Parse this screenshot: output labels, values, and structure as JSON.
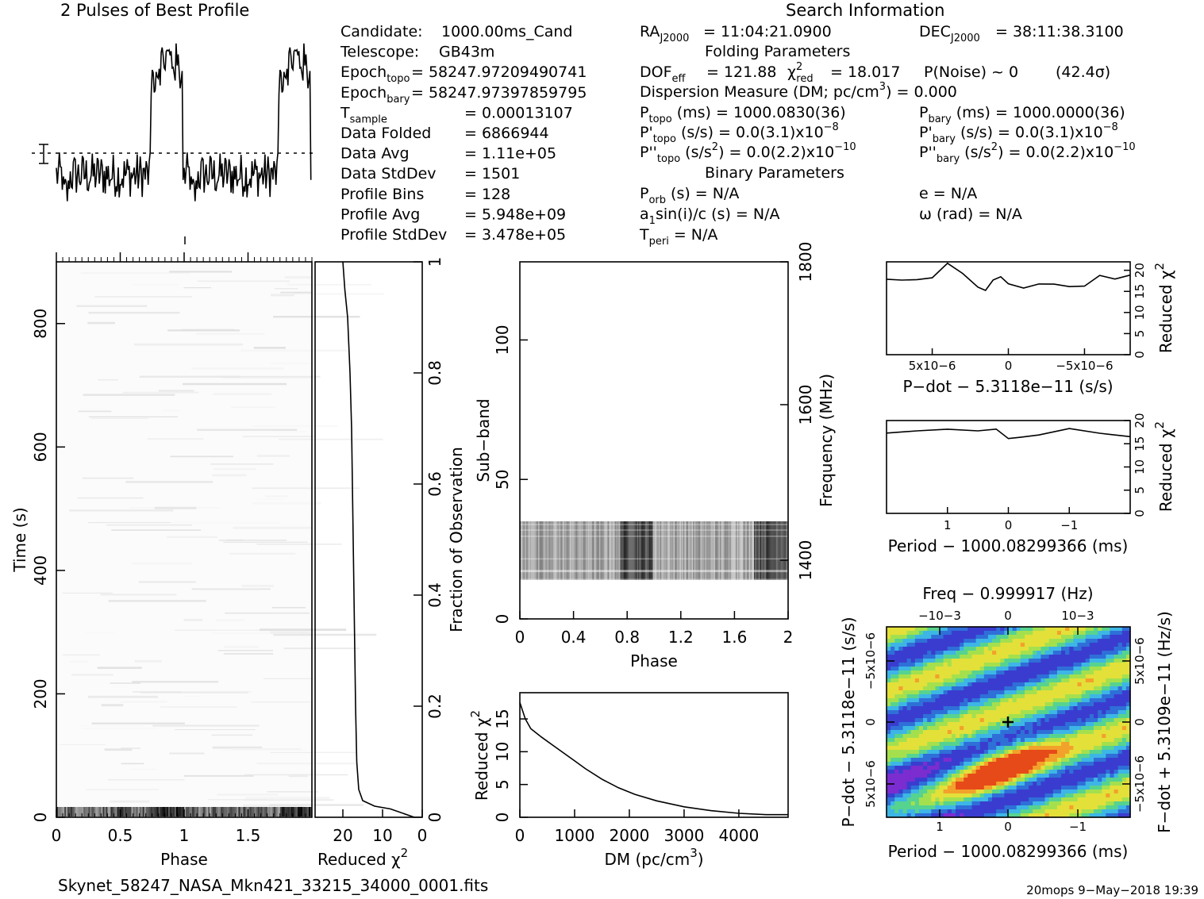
{
  "profile_title": "2 Pulses of Best Profile",
  "search_info_title": "Search Information",
  "info_col1": [
    {
      "label": "Candidate:",
      "value": "1000.00ms_Cand"
    },
    {
      "label": "Telescope:",
      "value": "GB43m"
    },
    {
      "label": "Epoch",
      "sub": "topo",
      "value": "= 58247.97209490741"
    },
    {
      "label": "Epoch",
      "sub": "bary",
      "value": "= 58247.97397859795"
    },
    {
      "label": "T",
      "sub": "sample",
      "value": "=   0.00013107"
    },
    {
      "label": "Data Folded",
      "value": "=   6866944"
    },
    {
      "label": "Data Avg",
      "value": "=   1.11e+05"
    },
    {
      "label": "Data StdDev",
      "value": "=   1501"
    },
    {
      "label": "Profile Bins",
      "value": "=   128"
    },
    {
      "label": "Profile Avg",
      "value": "=   5.948e+09"
    },
    {
      "label": "Profile StdDev",
      "value": "=   3.478e+05"
    }
  ],
  "info_col2": {
    "ra": "= 11:04:21.0900",
    "folding_title": "Folding Parameters",
    "dof": "DOF",
    "dof_sub": "eff",
    "dof_val": "= 121.88",
    "chi_val": "= 18.017",
    "chi_sub": "red",
    "pnoise": "P(Noise) ~ 0",
    "sigma": "(42.4σ)",
    "dm_line": "Dispersion Measure (DM; pc/cm",
    "dm_val": ") = 0.000",
    "ptopo": "(ms) =   1000.0830(36)",
    "pdtopo": "(s/s) = 0.0(3.1)x10",
    "pdtopo_exp": "−8",
    "pddtopo": "(s/s",
    "pddtopo_val": ") = 0.0(2.2)x10",
    "pddtopo_exp": "−10",
    "binary_title": "Binary Parameters",
    "porb": "(s) = N/A",
    "a1": "sin(i)/c (s) = N/A",
    "tperi": "= N/A"
  },
  "info_col3": {
    "dec": "= 38:11:38.3100",
    "pbary": "(ms) =   1000.0000(36)",
    "pdbary": "(s/s) = 0.0(3.1)x10",
    "pdbary_exp": "−8",
    "pddbary": "(s/s",
    "pddbary_val": ") = 0.0(2.2)x10",
    "pddbary_exp": "−10",
    "ecc": "e = N/A",
    "omega": "ω (rad) = N/A"
  },
  "labels": {
    "time_axis": "Time (s)",
    "phase": "Phase",
    "reduced_chi": "Reduced χ",
    "fraction": "Fraction of Observation",
    "subband": "Sub−band",
    "frequency": "Frequency (MHz)",
    "dm_axis": "DM (pc/cm",
    "pdot_label": "P−dot − 5.3118e−11 (s/s)",
    "period_label": "Period − 1000.08299366 (ms)",
    "freq_label": "Freq − 0.999917 (Hz)",
    "pdot_left": "P−dot − 5.3118e−11 (s/s)",
    "fdot_right": "F−dot + 5.3109e−11 (Hz/s)",
    "filename": "Skynet_58247_NASA_Mkn421_33215_34000_0001.fits",
    "footer_right": "20mops  9−May−2018 19:39"
  },
  "chart_data": [
    {
      "type": "line",
      "title": "2 Pulses of Best Profile",
      "xlabel": "Phase",
      "xlim": [
        0,
        2
      ],
      "description_values": "pulse profile, 128 bins x2",
      "profile_bins": 128
    },
    {
      "type": "heatmap",
      "xlabel": "Phase",
      "ylabel": "Time (s)",
      "xlim": [
        0,
        2
      ],
      "ylim": [
        0,
        900
      ],
      "xticks": [
        "0",
        "0.5",
        "1",
        "1.5"
      ],
      "yticks": [
        "0",
        "200",
        "400",
        "600",
        "800"
      ]
    },
    {
      "type": "line",
      "xlabel": "Reduced χ2",
      "ylabel": "Fraction of Observation",
      "xticks": [
        "20",
        "10",
        "0"
      ],
      "yticks": [
        "0",
        "0.2",
        "0.4",
        "0.6",
        "0.8",
        "1"
      ],
      "ylim": [
        0,
        1
      ],
      "x": [
        20,
        19.5,
        18.8,
        18.5,
        18.2,
        18.0,
        17.8,
        17.6,
        17.4,
        17.2,
        17.0,
        16.8,
        16.5,
        16,
        15,
        12,
        8,
        2
      ],
      "y": [
        1.0,
        0.95,
        0.9,
        0.85,
        0.8,
        0.75,
        0.7,
        0.6,
        0.5,
        0.4,
        0.3,
        0.2,
        0.1,
        0.05,
        0.03,
        0.02,
        0.015,
        0.0
      ]
    },
    {
      "type": "heatmap",
      "xlabel": "Phase",
      "ylabel": "Sub−band",
      "y2label": "Frequency (MHz)",
      "xlim": [
        0,
        2
      ],
      "ylim": [
        0,
        128
      ],
      "xticks": [
        "0",
        "0.4",
        "0.8",
        "1.2",
        "1.6",
        "2"
      ],
      "yticks": [
        "0",
        "50",
        "100"
      ],
      "y2ticks": [
        "1400",
        "1600",
        "1800"
      ],
      "active_subbands": [
        14,
        35
      ]
    },
    {
      "type": "line",
      "xlabel": "DM (pc/cm3)",
      "ylabel": "Reduced χ2",
      "xlim": [
        0,
        4900
      ],
      "ylim": [
        0,
        19
      ],
      "xticks": [
        "0",
        "1000",
        "2000",
        "3000",
        "4000"
      ],
      "yticks": [
        "0",
        "5",
        "10",
        "15"
      ],
      "x": [
        0,
        100,
        200,
        400,
        600,
        800,
        1000,
        1200,
        1500,
        1800,
        2100,
        2500,
        3000,
        3500,
        4000,
        4500,
        4900
      ],
      "y": [
        17.5,
        15,
        13.5,
        12.2,
        11,
        9.8,
        8.6,
        7.4,
        5.8,
        4.5,
        3.5,
        2.5,
        1.6,
        1.0,
        0.6,
        0.4,
        0.4
      ]
    },
    {
      "type": "line",
      "xlabel": "P−dot − 5.3118e−11 (s/s)",
      "ylabel": "Reduced χ2",
      "xlim": [
        8e-06,
        -8e-06
      ],
      "ylim": [
        0,
        22
      ],
      "xticks": [
        "5x10−6",
        "0",
        "−5x10−6"
      ],
      "yticks": [
        "0",
        "5",
        "10",
        "15",
        "20"
      ],
      "x": [
        8e-06,
        7e-06,
        6e-06,
        5e-06,
        4e-06,
        3e-06,
        2e-06,
        1.5e-06,
        1e-06,
        5e-07,
        0,
        -1e-06,
        -2e-06,
        -3e-06,
        -4e-06,
        -5e-06,
        -6e-06,
        -7e-06,
        -8e-06
      ],
      "y": [
        18.0,
        17.5,
        18.0,
        18.5,
        21.5,
        19.0,
        16.0,
        15.0,
        17.5,
        18.5,
        17.0,
        16.0,
        16.5,
        16.5,
        16.0,
        16.5,
        18.5,
        18.0,
        19.0
      ]
    },
    {
      "type": "line",
      "xlabel": "Period − 1000.08299366 (ms)",
      "ylabel": "Reduced χ2",
      "xlim": [
        2,
        -2
      ],
      "ylim": [
        0,
        20
      ],
      "xticks": [
        "1",
        "0",
        "−1"
      ],
      "yticks": [
        "0",
        "5",
        "10",
        "15",
        "20"
      ],
      "x": [
        2,
        1.5,
        1.0,
        0.5,
        0.2,
        0,
        -0.2,
        -0.5,
        -1.0,
        -1.5,
        -2
      ],
      "y": [
        17.0,
        17.5,
        18.0,
        17.5,
        18.0,
        16.0,
        16.5,
        17.0,
        18.0,
        17.5,
        16.5
      ]
    },
    {
      "type": "heatmap",
      "xlabel": "Period − 1000.08299366 (ms)",
      "ylabel": "P−dot − 5.3118e−11 (s/s)",
      "x2label": "Freq − 0.999917 (Hz)",
      "y2label": "F−dot + 5.3109e−11 (Hz/s)",
      "xticks": [
        "1",
        "0",
        "−1"
      ],
      "x2ticks": [
        "−10−3",
        "0",
        "10−3"
      ],
      "yticks": [
        "−5x10−6",
        "0",
        "5x10−6"
      ],
      "y2ticks": [
        "5x10−6",
        "0",
        "−5x10−6"
      ]
    }
  ]
}
